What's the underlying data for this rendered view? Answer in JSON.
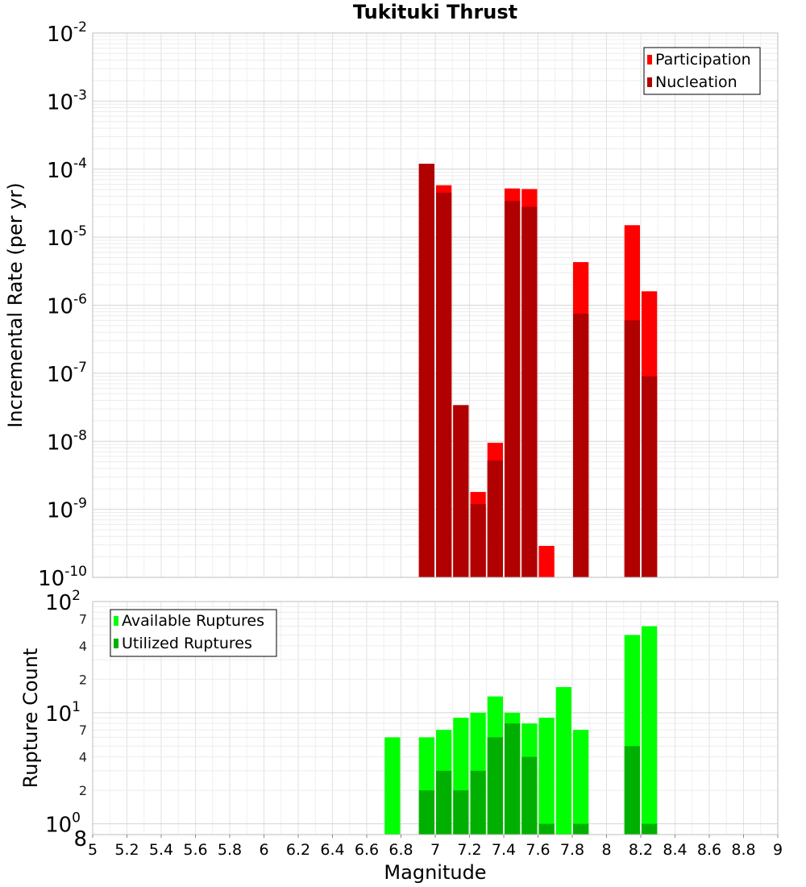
{
  "chart_data": [
    {
      "type": "bar",
      "title": "Tukituki Thrust",
      "xlabel": "",
      "ylabel": "Incremental Rate (per yr)",
      "yscale": "log",
      "xlim": [
        5,
        9
      ],
      "ylim": [
        1e-10,
        0.01
      ],
      "y_tick_exponents": [
        -10,
        -9,
        -8,
        -7,
        -6,
        -5,
        -4,
        -3,
        -2
      ],
      "y_tick_base": "10",
      "grid": true,
      "legend_position": "top-right",
      "bar_width": 0.1,
      "series": [
        {
          "name": "Participation",
          "color": "#ff0000",
          "x": [
            6.95,
            7.05,
            7.15,
            7.25,
            7.35,
            7.45,
            7.55,
            7.65,
            7.85,
            8.15,
            8.25
          ],
          "values": [
            0.00012,
            5.8e-05,
            3.4e-08,
            1.8e-09,
            9.5e-09,
            5.2e-05,
            5.1e-05,
            2.9e-10,
            4.3e-06,
            1.5e-05,
            1.6e-06
          ]
        },
        {
          "name": "Nucleation",
          "color": "#b00000",
          "x": [
            6.95,
            7.05,
            7.15,
            7.25,
            7.35,
            7.45,
            7.55,
            7.85,
            8.15,
            8.25
          ],
          "values": [
            0.00012,
            4.5e-05,
            3.4e-08,
            1.2e-09,
            5.2e-09,
            3.4e-05,
            2.8e-05,
            7.5e-07,
            6e-07,
            9e-08
          ]
        }
      ]
    },
    {
      "type": "bar",
      "title": "",
      "xlabel": "Magnitude",
      "ylabel": "Rupture Count",
      "yscale": "log",
      "xlim": [
        5,
        9
      ],
      "ylim": [
        0.8,
        100
      ],
      "x_ticks": [
        "5",
        "5.2",
        "5.4",
        "5.6",
        "5.8",
        "6",
        "6.2",
        "6.4",
        "6.6",
        "6.8",
        "7",
        "7.2",
        "7.4",
        "7.6",
        "7.8",
        "8",
        "8.2",
        "8.4",
        "8.6",
        "8.8",
        "9"
      ],
      "y_major_ticks": [
        {
          "base": "10",
          "exp": "0",
          "value": 1
        },
        {
          "base": "10",
          "exp": "1",
          "value": 10
        },
        {
          "base": "10",
          "exp": "2",
          "value": 100
        }
      ],
      "y_minor_ticks": [
        "8",
        "2",
        "4",
        "7",
        "2",
        "4",
        "7"
      ],
      "y_minor_values": [
        0.8,
        2,
        4,
        7,
        20,
        40,
        70
      ],
      "grid": true,
      "legend_position": "top-left",
      "bar_width": 0.1,
      "series": [
        {
          "name": "Available Ruptures",
          "color": "#00ff00",
          "x": [
            6.75,
            6.95,
            7.05,
            7.15,
            7.25,
            7.35,
            7.45,
            7.55,
            7.65,
            7.75,
            7.85,
            8.15,
            8.25
          ],
          "values": [
            6,
            6,
            7,
            9,
            10,
            14,
            10,
            8,
            9,
            17,
            7,
            50,
            60
          ]
        },
        {
          "name": "Utilized Ruptures",
          "color": "#00b000",
          "x": [
            6.95,
            7.05,
            7.15,
            7.25,
            7.35,
            7.45,
            7.55,
            7.65,
            7.85,
            8.15,
            8.25
          ],
          "values": [
            2,
            3,
            2,
            3,
            6,
            8,
            4,
            1,
            1,
            5,
            1
          ]
        }
      ]
    }
  ]
}
